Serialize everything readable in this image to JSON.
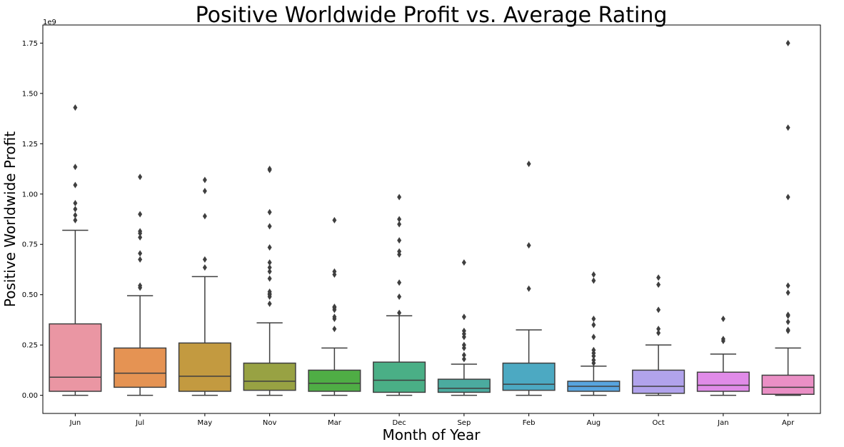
{
  "chart_data": {
    "type": "box",
    "title": "Positive Worldwide Profit vs. Average Rating",
    "xlabel": "Month of Year",
    "ylabel": "Positive Worldwide Profit",
    "y_offset_label": "1e9",
    "ylim": [
      -0.09,
      1.84
    ],
    "y_ticks": [
      0.0,
      0.25,
      0.5,
      0.75,
      1.0,
      1.25,
      1.5,
      1.75
    ],
    "y_tick_labels": [
      "0.00",
      "0.25",
      "0.50",
      "0.75",
      "1.00",
      "1.25",
      "1.50",
      "1.75"
    ],
    "grid": false,
    "categories": [
      "Jun",
      "Jul",
      "May",
      "Nov",
      "Mar",
      "Dec",
      "Sep",
      "Feb",
      "Aug",
      "Oct",
      "Jan",
      "Apr"
    ],
    "boxes": [
      {
        "category": "Jun",
        "color": "#ea96a3",
        "whisker_low": 0.0,
        "q1": 0.02,
        "median": 0.09,
        "q3": 0.355,
        "whisker_high": 0.82,
        "outliers": [
          0.87,
          0.895,
          0.925,
          0.955,
          1.045,
          1.135,
          1.43
        ]
      },
      {
        "category": "Jul",
        "color": "#e59353",
        "whisker_low": 0.0,
        "q1": 0.04,
        "median": 0.11,
        "q3": 0.235,
        "whisker_high": 0.495,
        "outliers": [
          0.535,
          0.545,
          0.675,
          0.705,
          0.785,
          0.805,
          0.815,
          0.9,
          1.085
        ]
      },
      {
        "category": "May",
        "color": "#c39a40",
        "whisker_low": 0.0,
        "q1": 0.02,
        "median": 0.095,
        "q3": 0.26,
        "whisker_high": 0.59,
        "outliers": [
          0.635,
          0.675,
          0.89,
          1.015,
          1.07
        ]
      },
      {
        "category": "Nov",
        "color": "#98a243",
        "whisker_low": 0.0,
        "q1": 0.025,
        "median": 0.07,
        "q3": 0.16,
        "whisker_high": 0.36,
        "outliers": [
          0.455,
          0.49,
          0.5,
          0.505,
          0.515,
          0.58,
          0.615,
          0.635,
          0.66,
          0.735,
          0.84,
          0.91,
          1.12,
          1.125
        ]
      },
      {
        "category": "Mar",
        "color": "#4fad45",
        "whisker_low": 0.0,
        "q1": 0.02,
        "median": 0.06,
        "q3": 0.125,
        "whisker_high": 0.235,
        "outliers": [
          0.33,
          0.38,
          0.39,
          0.425,
          0.435,
          0.44,
          0.6,
          0.615,
          0.87
        ]
      },
      {
        "category": "Dec",
        "color": "#4aaf86",
        "whisker_low": 0.0,
        "q1": 0.015,
        "median": 0.075,
        "q3": 0.165,
        "whisker_high": 0.395,
        "outliers": [
          0.41,
          0.49,
          0.56,
          0.7,
          0.715,
          0.77,
          0.85,
          0.875,
          0.985
        ]
      },
      {
        "category": "Sep",
        "color": "#4bab9f",
        "whisker_low": 0.0,
        "q1": 0.015,
        "median": 0.035,
        "q3": 0.08,
        "whisker_high": 0.155,
        "outliers": [
          0.18,
          0.2,
          0.235,
          0.25,
          0.29,
          0.305,
          0.32,
          0.39,
          0.66
        ]
      },
      {
        "category": "Feb",
        "color": "#4ca9c2",
        "whisker_low": 0.0,
        "q1": 0.025,
        "median": 0.055,
        "q3": 0.16,
        "whisker_high": 0.325,
        "outliers": [
          0.53,
          0.745,
          1.15
        ]
      },
      {
        "category": "Aug",
        "color": "#58a4df",
        "whisker_low": 0.0,
        "q1": 0.02,
        "median": 0.045,
        "q3": 0.07,
        "whisker_high": 0.145,
        "outliers": [
          0.16,
          0.175,
          0.195,
          0.21,
          0.225,
          0.29,
          0.35,
          0.38,
          0.57,
          0.6
        ]
      },
      {
        "category": "Oct",
        "color": "#b1a3ec",
        "whisker_low": 0.0,
        "q1": 0.01,
        "median": 0.045,
        "q3": 0.125,
        "whisker_high": 0.25,
        "outliers": [
          0.31,
          0.33,
          0.425,
          0.55,
          0.585
        ]
      },
      {
        "category": "Jan",
        "color": "#e08be8",
        "whisker_low": 0.0,
        "q1": 0.02,
        "median": 0.05,
        "q3": 0.115,
        "whisker_high": 0.205,
        "outliers": [
          0.27,
          0.28,
          0.38
        ]
      },
      {
        "category": "Apr",
        "color": "#ea8fc5",
        "whisker_low": 0.0,
        "q1": 0.005,
        "median": 0.04,
        "q3": 0.1,
        "whisker_high": 0.235,
        "outliers": [
          0.32,
          0.325,
          0.365,
          0.395,
          0.4,
          0.51,
          0.545,
          0.985,
          1.33,
          1.75
        ]
      }
    ]
  }
}
